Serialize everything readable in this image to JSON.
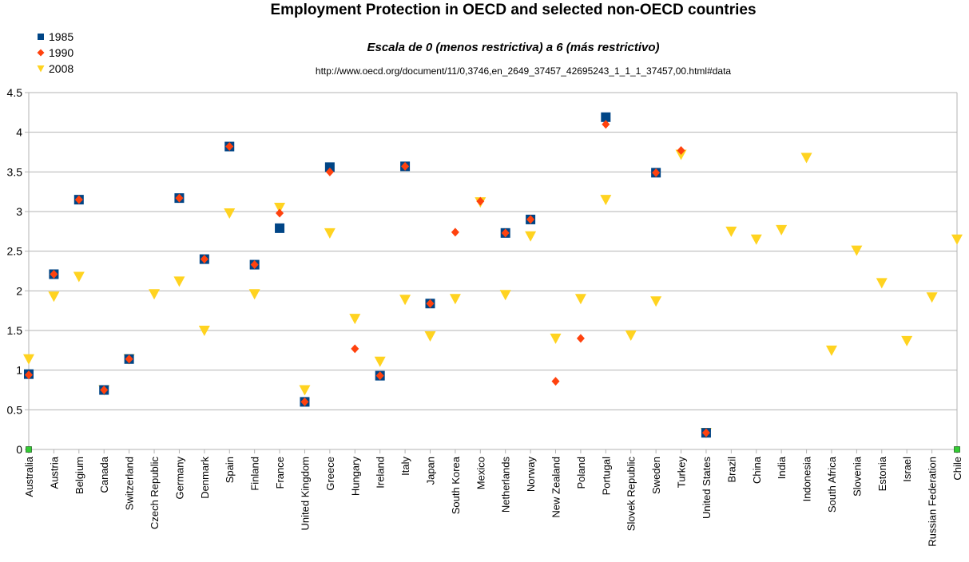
{
  "chart_data": {
    "type": "scatter",
    "title": "Employment Protection in OECD and selected non-OECD countries",
    "subtitle": "Escala de 0 (menos restrictiva) a 6 (más restrictivo)",
    "source": "http://www.oecd.org/document/11/0,3746,en_2649_37457_42695243_1_1_1_37457,00.html#data",
    "categories": [
      "Australia",
      "Austria",
      "Belgium",
      "Canada",
      "Switzerland",
      "Czech Republic",
      "Germany",
      "Denmark",
      "Spain",
      "Finland",
      "France",
      "United Kingdom",
      "Greece",
      "Hungary",
      "Ireland",
      "Italy",
      "Japan",
      "South Korea",
      "Mexico",
      "Netherlands",
      "Norway",
      "New Zealand",
      "Poland",
      "Portugal",
      "Slovek Republic",
      "Sweden",
      "Turkey",
      "United States",
      "Brazil",
      "China",
      "India",
      "Indonesia",
      "South Africa",
      "Slovenia",
      "Estonia",
      "Israel",
      "Russian Federation",
      "Chile"
    ],
    "ylim": [
      0,
      4.5
    ],
    "yticks": [
      "0",
      "0.5",
      "1",
      "1.5",
      "2",
      "2.5",
      "3",
      "3.5",
      "4",
      "4.5"
    ],
    "grid": true,
    "legend_position": "top-left",
    "series": [
      {
        "name": "1985",
        "color": "#004586",
        "marker": "square",
        "values": [
          0.95,
          2.21,
          3.15,
          0.75,
          1.14,
          null,
          3.17,
          2.4,
          3.82,
          2.33,
          2.79,
          0.6,
          3.56,
          null,
          0.93,
          3.57,
          1.84,
          null,
          null,
          2.73,
          2.9,
          null,
          null,
          4.19,
          null,
          3.49,
          null,
          0.21,
          null,
          null,
          null,
          null,
          null,
          null,
          null,
          null,
          null,
          null
        ]
      },
      {
        "name": "1990",
        "color": "#ff420e",
        "marker": "diamond",
        "values": [
          0.94,
          2.21,
          3.15,
          0.75,
          1.14,
          null,
          3.17,
          2.4,
          3.82,
          2.33,
          2.98,
          0.6,
          3.5,
          1.27,
          0.93,
          3.57,
          1.84,
          2.74,
          3.13,
          2.73,
          2.9,
          0.86,
          1.4,
          4.1,
          null,
          3.49,
          3.77,
          0.21,
          null,
          null,
          null,
          null,
          null,
          null,
          null,
          null,
          null,
          null
        ]
      },
      {
        "name": "2008",
        "color": "#ffd320",
        "marker": "triangle-down",
        "values": [
          1.14,
          1.93,
          2.18,
          0.75,
          1.14,
          1.96,
          2.12,
          1.5,
          2.98,
          1.96,
          3.05,
          0.75,
          2.73,
          1.65,
          1.11,
          1.89,
          1.43,
          1.9,
          3.12,
          1.95,
          2.69,
          1.4,
          1.9,
          3.15,
          1.44,
          1.87,
          3.72,
          0.21,
          2.75,
          2.65,
          2.77,
          3.68,
          1.25,
          2.51,
          2.1,
          1.37,
          1.92,
          2.65
        ]
      }
    ]
  }
}
